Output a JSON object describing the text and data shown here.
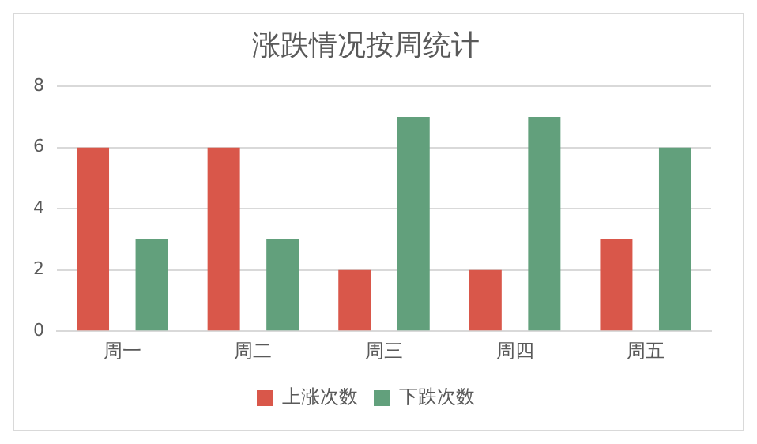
{
  "chart_data": {
    "type": "bar",
    "title": "涨跌情况按周统计",
    "categories": [
      "周一",
      "周二",
      "周三",
      "周四",
      "周五"
    ],
    "series": [
      {
        "name": "上涨次数",
        "color": "#d9574a",
        "values": [
          6,
          6,
          2,
          2,
          3
        ]
      },
      {
        "name": "下跌次数",
        "color": "#62a07c",
        "values": [
          3,
          3,
          7,
          7,
          6
        ]
      }
    ],
    "ylim": [
      0,
      8
    ],
    "yticks": [
      0,
      2,
      4,
      6,
      8
    ],
    "grid": "y",
    "legend": "bottom"
  }
}
